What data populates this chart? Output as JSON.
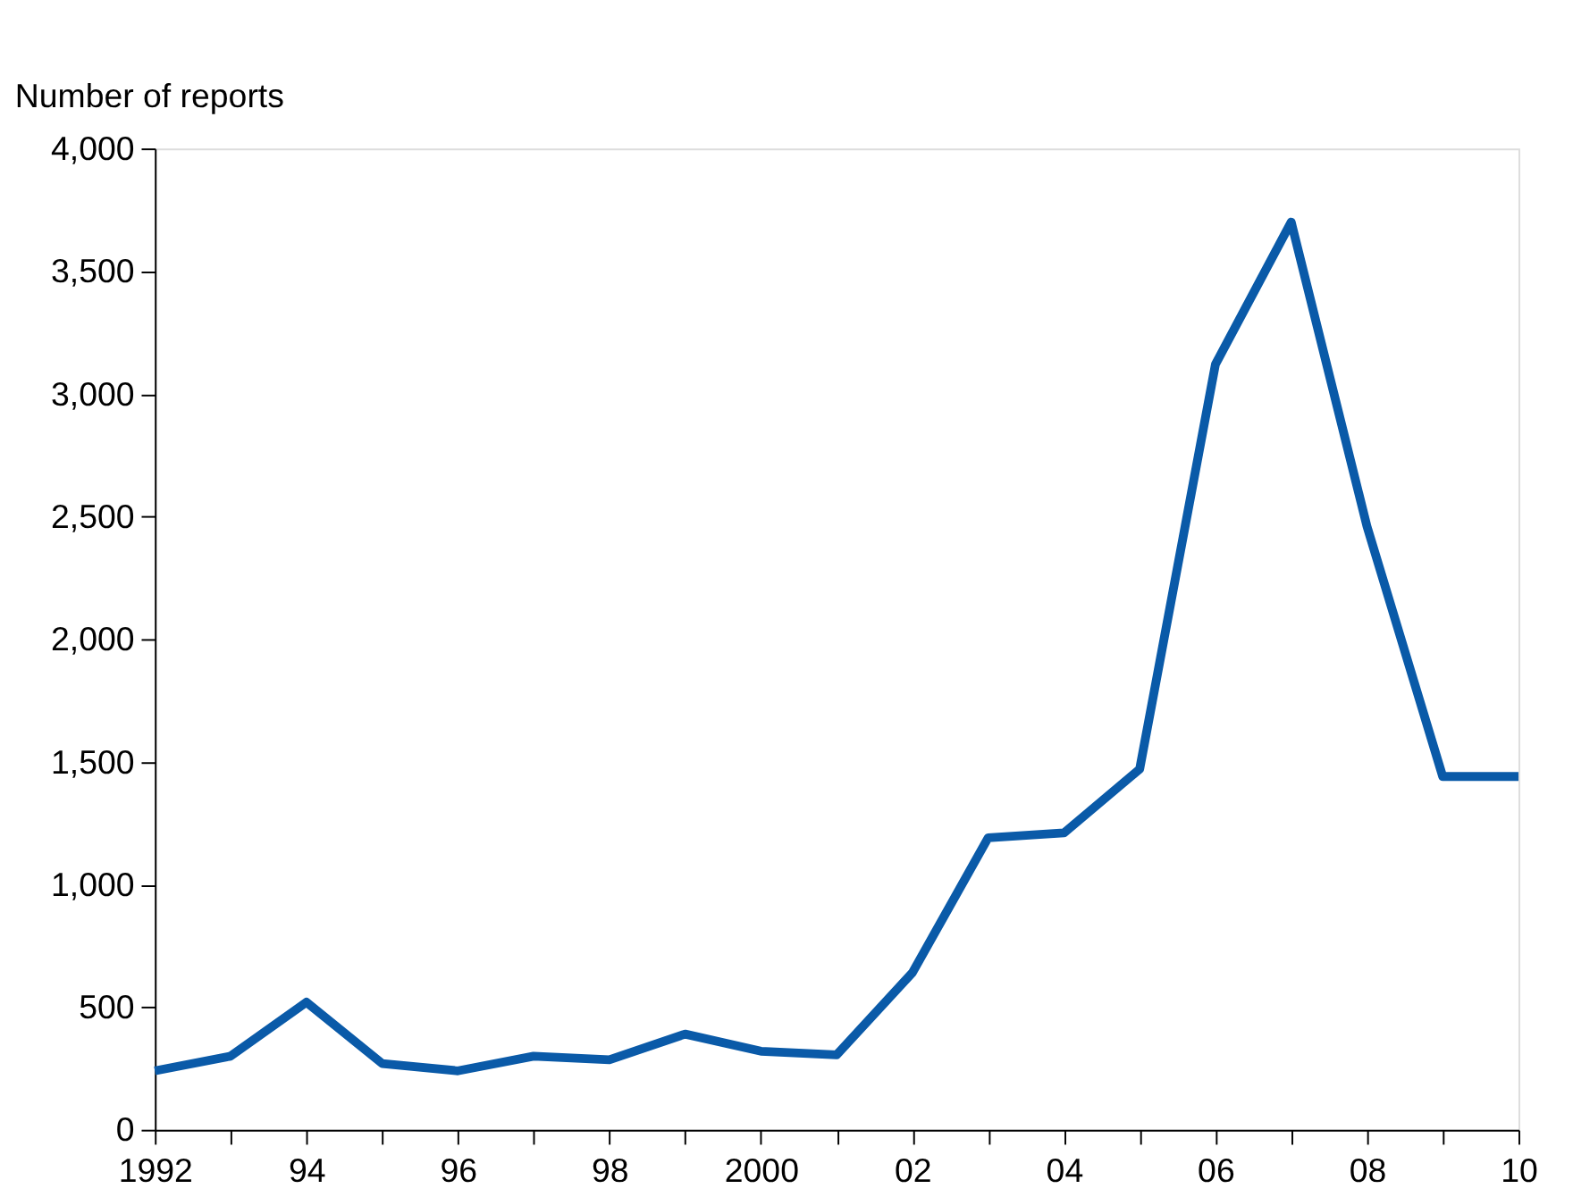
{
  "chart_data": {
    "type": "line",
    "ylabel": "Number of reports",
    "x": [
      1992,
      1993,
      1994,
      1995,
      1996,
      1997,
      1998,
      1999,
      2000,
      2001,
      2002,
      2003,
      2004,
      2005,
      2006,
      2007,
      2008,
      2009,
      2010
    ],
    "series": [
      {
        "color": "#0a5aa8",
        "values": [
          240,
          300,
          520,
          270,
          240,
          300,
          285,
          390,
          320,
          305,
          640,
          1190,
          1210,
          1470,
          3120,
          3700,
          2460,
          1440,
          1440
        ]
      }
    ],
    "xlim": [
      1992,
      2010
    ],
    "xticks": [
      {
        "value": 1992,
        "label": "1992"
      },
      {
        "value": 1993,
        "label": null
      },
      {
        "value": 1994,
        "label": "94"
      },
      {
        "value": 1995,
        "label": null
      },
      {
        "value": 1996,
        "label": "96"
      },
      {
        "value": 1997,
        "label": null
      },
      {
        "value": 1998,
        "label": "98"
      },
      {
        "value": 1999,
        "label": null
      },
      {
        "value": 2000,
        "label": "2000"
      },
      {
        "value": 2001,
        "label": null
      },
      {
        "value": 2002,
        "label": "02"
      },
      {
        "value": 2003,
        "label": null
      },
      {
        "value": 2004,
        "label": "04"
      },
      {
        "value": 2005,
        "label": null
      },
      {
        "value": 2006,
        "label": "06"
      },
      {
        "value": 2007,
        "label": null
      },
      {
        "value": 2008,
        "label": "08"
      },
      {
        "value": 2009,
        "label": null
      },
      {
        "value": 2010,
        "label": "10"
      }
    ],
    "ylim": [
      0,
      4000
    ],
    "yticks": [
      {
        "value": 0,
        "label": "0"
      },
      {
        "value": 500,
        "label": "500"
      },
      {
        "value": 1000,
        "label": "1,000"
      },
      {
        "value": 1500,
        "label": "1,500"
      },
      {
        "value": 2000,
        "label": "2,000"
      },
      {
        "value": 2500,
        "label": "2,500"
      },
      {
        "value": 3000,
        "label": "3,000"
      },
      {
        "value": 3500,
        "label": "3,500"
      },
      {
        "value": 4000,
        "label": "4,000"
      }
    ],
    "grid": false,
    "legend": false,
    "marker": "none",
    "line_style": "solid"
  }
}
